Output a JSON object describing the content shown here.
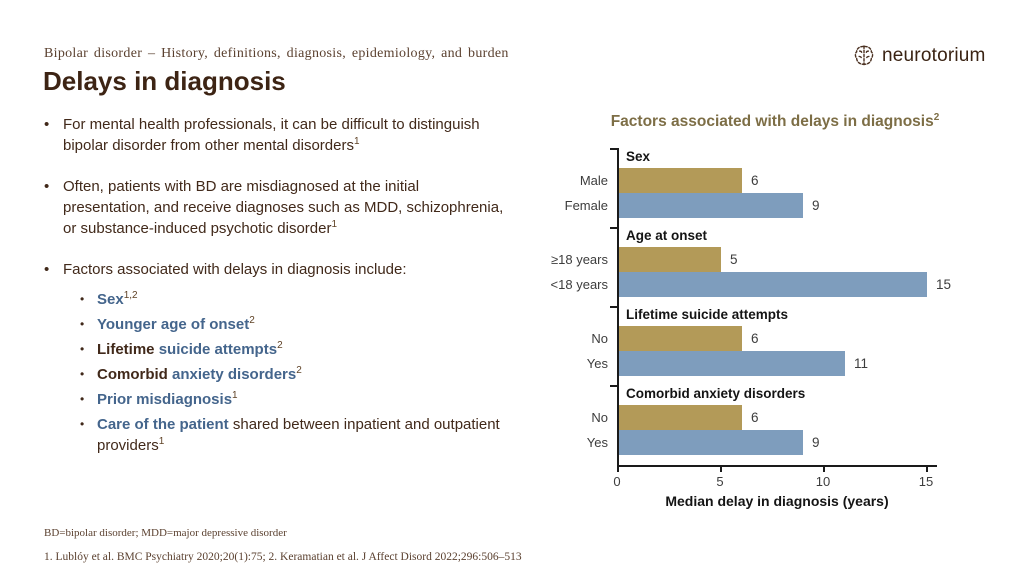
{
  "slide": {
    "kicker": "Bipolar disorder – History, definitions, diagnosis, epidemiology, and burden",
    "title": "Delays in diagnosis",
    "bullet_char": "•"
  },
  "logo": {
    "wordmark": "neurotorium",
    "icon": "brain-icon"
  },
  "bullets": [
    {
      "segments": [
        {
          "t": "For mental health professionals, it can be difficult to distinguish bipolar disorder from other mental disorders"
        },
        {
          "t": "1",
          "sup": true
        }
      ]
    },
    {
      "segments": [
        {
          "t": "Often, patients with BD are misdiagnosed at the initial presentation, and receive diagnoses such as MDD, schizophrenia, or substance-induced psychotic disorder"
        },
        {
          "t": "1",
          "sup": true
        }
      ]
    },
    {
      "segments": [
        {
          "t": "Factors associated with delays in diagnosis include:"
        }
      ],
      "children": [
        {
          "segments": [
            {
              "t": "Sex",
              "accent": true
            },
            {
              "t": "1,2",
              "sup": true
            }
          ]
        },
        {
          "segments": [
            {
              "t": "Younger age of onset",
              "accent": true
            },
            {
              "t": "2",
              "sup": true
            }
          ]
        },
        {
          "segments": [
            {
              "t": "Lifetime ",
              "bold": true
            },
            {
              "t": "suicide attempts",
              "accent": true
            },
            {
              "t": "2",
              "sup": true
            }
          ]
        },
        {
          "segments": [
            {
              "t": "Comorbid ",
              "bold": true
            },
            {
              "t": "anxiety disorders",
              "accent": true
            },
            {
              "t": "2",
              "sup": true
            }
          ]
        },
        {
          "segments": [
            {
              "t": "Prior misdiagnosis",
              "accent": true
            },
            {
              "t": "1",
              "sup": true
            }
          ]
        },
        {
          "segments": [
            {
              "t": "Care of the patient",
              "accent": true
            },
            {
              "t": " shared between inpatient and outpatient providers"
            },
            {
              "t": "1",
              "sup": true
            }
          ]
        }
      ]
    }
  ],
  "chart_data": {
    "type": "bar",
    "orientation": "horizontal",
    "title": "Factors associated with delays in diagnosis",
    "title_superscript": "2",
    "xlabel": "Median delay in diagnosis (years)",
    "xlim": [
      0,
      15
    ],
    "xticks": [
      0,
      5,
      10,
      15
    ],
    "grid": false,
    "legend": "none",
    "bar_colors": {
      "tan": "#b39a58",
      "blue": "#7e9dbd"
    },
    "groups": [
      {
        "label": "Sex",
        "bars": [
          {
            "category": "Male",
            "value": 6,
            "color": "tan"
          },
          {
            "category": "Female",
            "value": 9,
            "color": "blue"
          }
        ]
      },
      {
        "label": "Age at onset",
        "bars": [
          {
            "category": "≥18 years",
            "value": 5,
            "color": "tan"
          },
          {
            "category": "<18 years",
            "value": 15,
            "color": "blue"
          }
        ]
      },
      {
        "label": "Lifetime suicide attempts",
        "bars": [
          {
            "category": "No",
            "value": 6,
            "color": "tan"
          },
          {
            "category": "Yes",
            "value": 11,
            "color": "blue"
          }
        ]
      },
      {
        "label": "Comorbid anxiety disorders",
        "bars": [
          {
            "category": "No",
            "value": 6,
            "color": "tan"
          },
          {
            "category": "Yes",
            "value": 9,
            "color": "blue"
          }
        ]
      }
    ]
  },
  "footer": {
    "abbreviations": "BD=bipolar disorder; MDD=major depressive disorder",
    "references": "1. Lublóy et al. BMC Psychiatry 2020;20(1):75; 2. Keramatian et al. J Affect Disord 2022;296:506–513"
  }
}
